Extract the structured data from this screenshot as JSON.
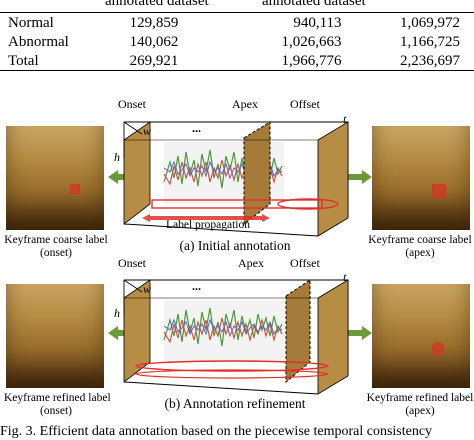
{
  "table": {
    "header": {
      "col2": "annotated dataset",
      "col3": "annotated dataset"
    },
    "rows": [
      {
        "label": "Normal",
        "c1": "129,859",
        "c2": "940,113",
        "c3": "1,069,972"
      },
      {
        "label": "Abnormal",
        "c1": "140,062",
        "c2": "1,026,663",
        "c3": "1,166,725"
      },
      {
        "label": "Total",
        "c1": "269,921",
        "c2": "1,966,776",
        "c3": "2,236,697"
      }
    ]
  },
  "figure": {
    "panel_a": {
      "onset": "Onset",
      "apex": "Apex",
      "offset": "Offset",
      "axis_t": "t",
      "axis_w": "w",
      "axis_h": "h",
      "ellipsis": "...",
      "propagation": "Label propagation",
      "left_caption_line1": "Keyframe coarse label",
      "left_caption_line2": "(onset)",
      "right_caption_line1": "Keyframe coarse label",
      "right_caption_line2": "(apex)",
      "subcaption": "(a) Initial annotation"
    },
    "panel_b": {
      "onset": "Onset",
      "apex": "Apex",
      "offset": "Offset",
      "axis_t": "t",
      "axis_w": "w",
      "axis_h": "h",
      "ellipsis": "...",
      "left_caption_line1": "Keyframe refined label",
      "left_caption_line2": "(onset)",
      "right_caption_line1": "Keyframe refined label",
      "right_caption_line2": "(apex)",
      "subcaption": "(b) Annotation refinement"
    },
    "caption": "Fig. 3.  Efficient data annotation based on the piecewise temporal consistency"
  },
  "colors": {
    "arrow_green": "#6b9a3a",
    "label_red": "#e0302a",
    "signal_green": "#4a9a3c",
    "signal_red": "#d44a3a",
    "signal_blue": "#4a6acc"
  }
}
